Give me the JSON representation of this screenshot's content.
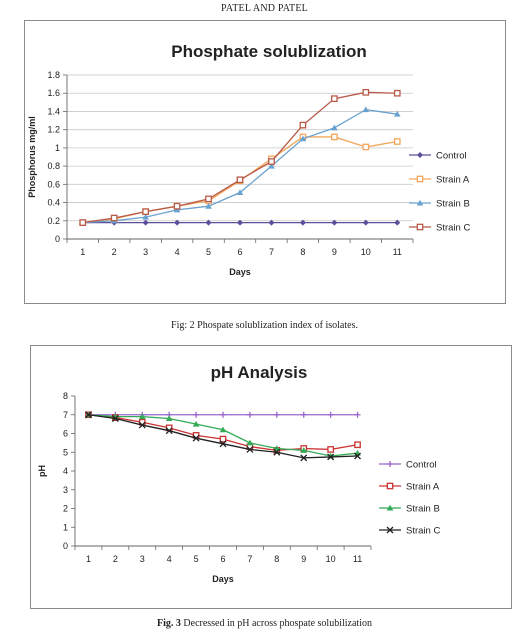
{
  "header": {
    "running_title": "PATEL AND PATEL"
  },
  "fig2": {
    "caption": "Fig: 2 Phospate solublization index of isolates."
  },
  "fig3": {
    "caption_prefix": "Fig. 3",
    "caption_text": " Decressed in pH across phospate solubilization"
  },
  "chart_data": [
    {
      "type": "line",
      "title": "Phosphate solublization",
      "xlabel": "Days",
      "ylabel": "Phosphorus mg/ml",
      "x": [
        1,
        2,
        3,
        4,
        5,
        6,
        7,
        8,
        9,
        10,
        11
      ],
      "ylim": [
        0,
        1.8
      ],
      "yticks": [
        "0",
        "0.2",
        "0.4",
        "0.6",
        "0.8",
        "1",
        "1.2",
        "1.4",
        "1.6",
        "1.8"
      ],
      "legend_position": "right",
      "series": [
        {
          "name": "Control",
          "color": "#5b4f9c",
          "marker": "diamond",
          "values": [
            0.18,
            0.18,
            0.18,
            0.18,
            0.18,
            0.18,
            0.18,
            0.18,
            0.18,
            0.18,
            0.18
          ]
        },
        {
          "name": "Strain A",
          "color": "#f2a65a",
          "marker": "square",
          "values": [
            0.18,
            0.22,
            0.3,
            0.36,
            0.42,
            0.64,
            0.88,
            1.12,
            1.12,
            1.01,
            1.07
          ]
        },
        {
          "name": "Strain B",
          "color": "#6aa2cf",
          "marker": "triangle",
          "values": [
            0.18,
            0.2,
            0.24,
            0.32,
            0.36,
            0.51,
            0.8,
            1.1,
            1.22,
            1.42,
            1.37
          ]
        },
        {
          "name": "Strain C",
          "color": "#b85a4a",
          "marker": "square",
          "values": [
            0.18,
            0.23,
            0.3,
            0.36,
            0.44,
            0.65,
            0.85,
            1.25,
            1.54,
            1.61,
            1.6
          ]
        }
      ]
    },
    {
      "type": "line",
      "title": "pH Analysis",
      "xlabel": "Days",
      "ylabel": "pH",
      "x": [
        1,
        2,
        3,
        4,
        5,
        6,
        7,
        8,
        9,
        10,
        11
      ],
      "ylim": [
        0,
        8
      ],
      "yticks": [
        "0",
        "1",
        "2",
        "3",
        "4",
        "5",
        "6",
        "7",
        "8"
      ],
      "legend_position": "right",
      "series": [
        {
          "name": "Control",
          "color": "#9966cc",
          "marker": "plus",
          "values": [
            7,
            7,
            7,
            7,
            7,
            7,
            7,
            7,
            7,
            7,
            7
          ]
        },
        {
          "name": "Strain A",
          "color": "#cc3333",
          "marker": "square",
          "values": [
            7,
            6.85,
            6.6,
            6.3,
            5.9,
            5.7,
            5.3,
            5.1,
            5.2,
            5.15,
            5.4
          ]
        },
        {
          "name": "Strain B",
          "color": "#33aa55",
          "marker": "triangle",
          "values": [
            7,
            6.9,
            6.9,
            6.8,
            6.5,
            6.2,
            5.5,
            5.2,
            5.1,
            4.8,
            4.95
          ]
        },
        {
          "name": "Strain C",
          "color": "#222222",
          "marker": "x",
          "values": [
            7,
            6.8,
            6.45,
            6.15,
            5.75,
            5.45,
            5.15,
            5.0,
            4.7,
            4.75,
            4.8
          ]
        }
      ]
    }
  ]
}
